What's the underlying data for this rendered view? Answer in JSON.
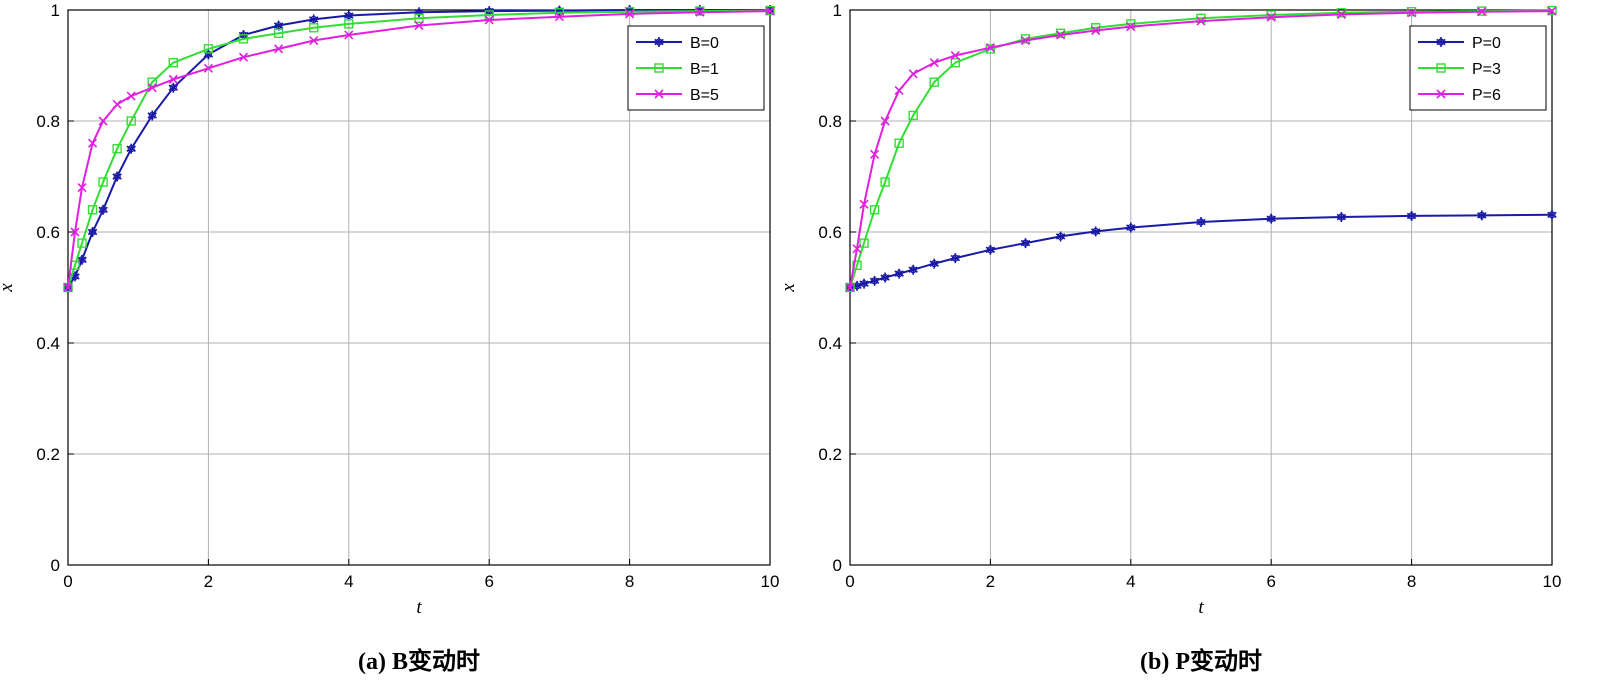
{
  "chart_data": [
    {
      "type": "line",
      "caption": "(a) B变动时",
      "xlabel": "t",
      "ylabel": "x",
      "xlim": [
        0,
        10
      ],
      "ylim": [
        0,
        1
      ],
      "xticks": [
        "0",
        "2",
        "4",
        "6",
        "8",
        "10"
      ],
      "yticks": [
        "0",
        "0.2",
        "0.4",
        "0.6",
        "0.8",
        "1"
      ],
      "grid": true,
      "legend_position": "top-right",
      "x": [
        0,
        0.1,
        0.2,
        0.35,
        0.5,
        0.7,
        0.9,
        1.2,
        1.5,
        2,
        2.5,
        3,
        3.5,
        4,
        5,
        6,
        7,
        8,
        9,
        10
      ],
      "series": [
        {
          "name": "B=0",
          "color": "#1a1aa6",
          "marker": "star",
          "values": [
            0.5,
            0.52,
            0.55,
            0.6,
            0.64,
            0.7,
            0.75,
            0.81,
            0.86,
            0.92,
            0.955,
            0.972,
            0.983,
            0.99,
            0.996,
            0.998,
            0.999,
            1.0,
            1.0,
            1.0
          ]
        },
        {
          "name": "B=1",
          "color": "#33dd33",
          "marker": "square",
          "values": [
            0.5,
            0.54,
            0.58,
            0.64,
            0.69,
            0.75,
            0.8,
            0.87,
            0.905,
            0.93,
            0.948,
            0.958,
            0.968,
            0.975,
            0.985,
            0.991,
            0.995,
            0.997,
            0.998,
            0.999
          ]
        },
        {
          "name": "B=5",
          "color": "#e020e0",
          "marker": "x",
          "values": [
            0.5,
            0.6,
            0.68,
            0.76,
            0.8,
            0.83,
            0.845,
            0.86,
            0.875,
            0.895,
            0.915,
            0.93,
            0.945,
            0.955,
            0.972,
            0.982,
            0.988,
            0.993,
            0.996,
            0.998
          ]
        }
      ]
    },
    {
      "type": "line",
      "caption": "(b) P变动时",
      "xlabel": "t",
      "ylabel": "x",
      "xlim": [
        0,
        10
      ],
      "ylim": [
        0,
        1
      ],
      "xticks": [
        "0",
        "2",
        "4",
        "6",
        "8",
        "10"
      ],
      "yticks": [
        "0",
        "0.2",
        "0.4",
        "0.6",
        "0.8",
        "1"
      ],
      "grid": true,
      "legend_position": "top-right",
      "x": [
        0,
        0.1,
        0.2,
        0.35,
        0.5,
        0.7,
        0.9,
        1.2,
        1.5,
        2,
        2.5,
        3,
        3.5,
        4,
        5,
        6,
        7,
        8,
        9,
        10
      ],
      "series": [
        {
          "name": "P=0",
          "color": "#1a1aa6",
          "marker": "star",
          "values": [
            0.5,
            0.503,
            0.507,
            0.512,
            0.518,
            0.525,
            0.532,
            0.543,
            0.553,
            0.568,
            0.58,
            0.592,
            0.601,
            0.608,
            0.618,
            0.624,
            0.627,
            0.629,
            0.63,
            0.631
          ]
        },
        {
          "name": "P=3",
          "color": "#33dd33",
          "marker": "square",
          "values": [
            0.5,
            0.54,
            0.58,
            0.64,
            0.69,
            0.76,
            0.81,
            0.87,
            0.905,
            0.93,
            0.948,
            0.958,
            0.968,
            0.975,
            0.985,
            0.991,
            0.995,
            0.997,
            0.998,
            0.999
          ]
        },
        {
          "name": "P=6",
          "color": "#e020e0",
          "marker": "x",
          "values": [
            0.5,
            0.57,
            0.65,
            0.74,
            0.8,
            0.855,
            0.885,
            0.905,
            0.918,
            0.932,
            0.945,
            0.955,
            0.963,
            0.97,
            0.98,
            0.987,
            0.992,
            0.995,
            0.997,
            0.998
          ]
        }
      ]
    }
  ]
}
